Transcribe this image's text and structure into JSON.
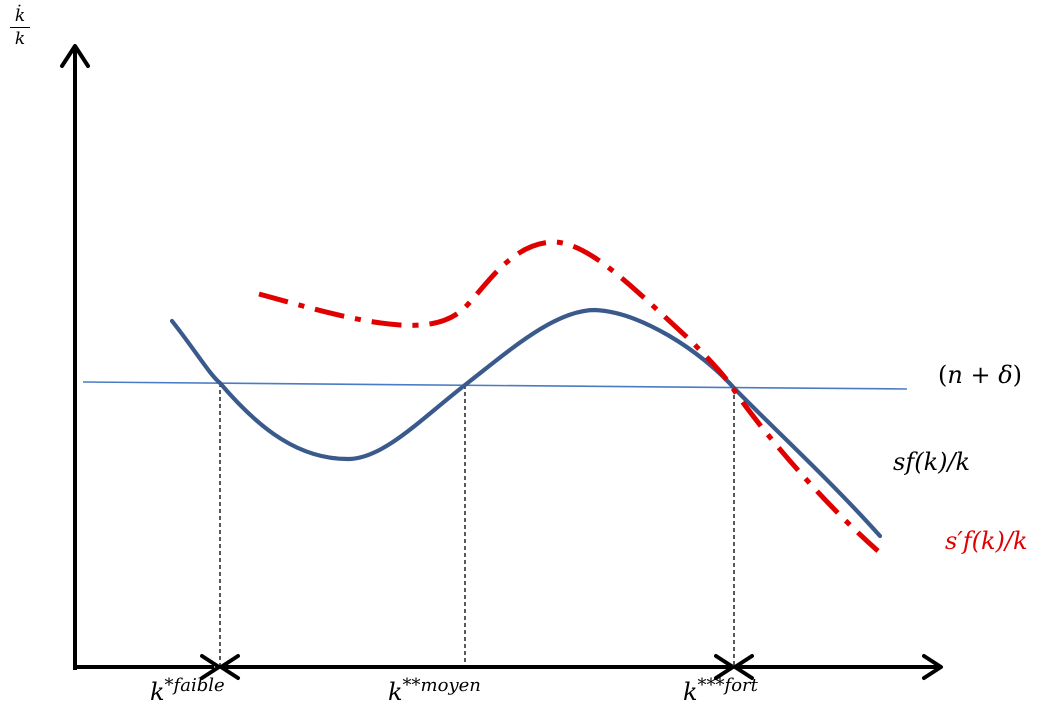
{
  "diagram": {
    "y_axis": {
      "numerator": "k̇",
      "denominator": "k"
    },
    "horizontal_line_label": {
      "open": "(",
      "var1": "n",
      "plus": " + ",
      "var2": "δ",
      "close": ")"
    },
    "curve_blue_label": "sf(k)/k",
    "curve_red_label": "s′f(k)/k",
    "equilibria": [
      {
        "base": "k",
        "sup": "*faible"
      },
      {
        "base": "k",
        "sup": "**moyen"
      },
      {
        "base": "k",
        "sup": "***fort"
      }
    ],
    "colors": {
      "axis": "#000000",
      "curve_blue": "#3a5a8c",
      "line_n_delta": "#4a7cc4",
      "curve_red": "#e00000",
      "dashed": "#000000",
      "red_label": "#e00000"
    }
  }
}
